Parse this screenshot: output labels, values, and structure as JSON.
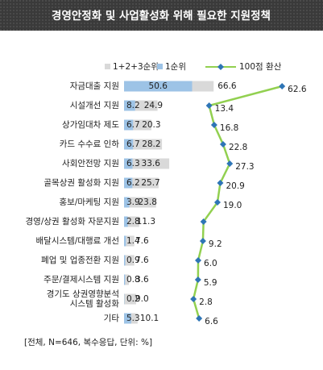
{
  "chart_data": {
    "type": "bar",
    "title": "경영안정화 및 사업활성화 위해 필요한 지원정책",
    "categories": [
      "자금대출 지원",
      "시설개선 지원",
      "상가임대차 제도",
      "카드 수수료 인하",
      "사회안전망 지원",
      "골목상권 활성화 지원",
      "홍보/마케팅 지원",
      "경영/상권 활성화 자문지원",
      "배달시스템/대행료 개선",
      "폐업 및 업종전환 지원",
      "주문/결제시스템 지원",
      [
        "경기도 상권영향분석",
        "시스템 활성화"
      ],
      "기타"
    ],
    "series": [
      {
        "name": "1+2+3순위",
        "color": "#d9d9d9",
        "values": [
          66.6,
          24.9,
          20.3,
          28.2,
          33.6,
          25.7,
          23.8,
          11.3,
          7.6,
          7.6,
          3.6,
          9.0,
          10.1
        ],
        "value_labels": [
          "66.6",
          "24.9",
          "20.3",
          "28.2",
          "33.6",
          "25.7",
          "23.8",
          "11.3",
          "7.6",
          "7.6",
          "3.6",
          "9.0",
          "10.1"
        ]
      },
      {
        "name": "1순위",
        "color": "#9dc3e6",
        "values": [
          50.6,
          8.2,
          6.7,
          6.7,
          6.3,
          6.2,
          3.9,
          2.8,
          1.4,
          0.9,
          0.8,
          0.2,
          5.3
        ],
        "value_labels": [
          "50.6",
          "8.2",
          "6.7",
          "6.7",
          "6.3",
          "6.2",
          "3.9",
          "2.8",
          "1.4",
          "0.9",
          "0.8",
          "0.2",
          "5.3"
        ]
      },
      {
        "name": "100점 환산",
        "type": "line",
        "color": "#92d050",
        "marker_color": "#2e75b6",
        "values": [
          62.6,
          13.4,
          16.8,
          22.8,
          27.3,
          20.9,
          19.0,
          9.6,
          9.2,
          6.0,
          5.9,
          2.8,
          6.6
        ],
        "value_labels": [
          "62.6",
          "13.4",
          "16.8",
          "22.8",
          "27.3",
          "20.9",
          "19.0",
          null,
          "9.2",
          "6.0",
          "5.9",
          "2.8",
          "6.6"
        ]
      }
    ],
    "note": "[전체, N=646, 복수응답, 단위: %]"
  }
}
